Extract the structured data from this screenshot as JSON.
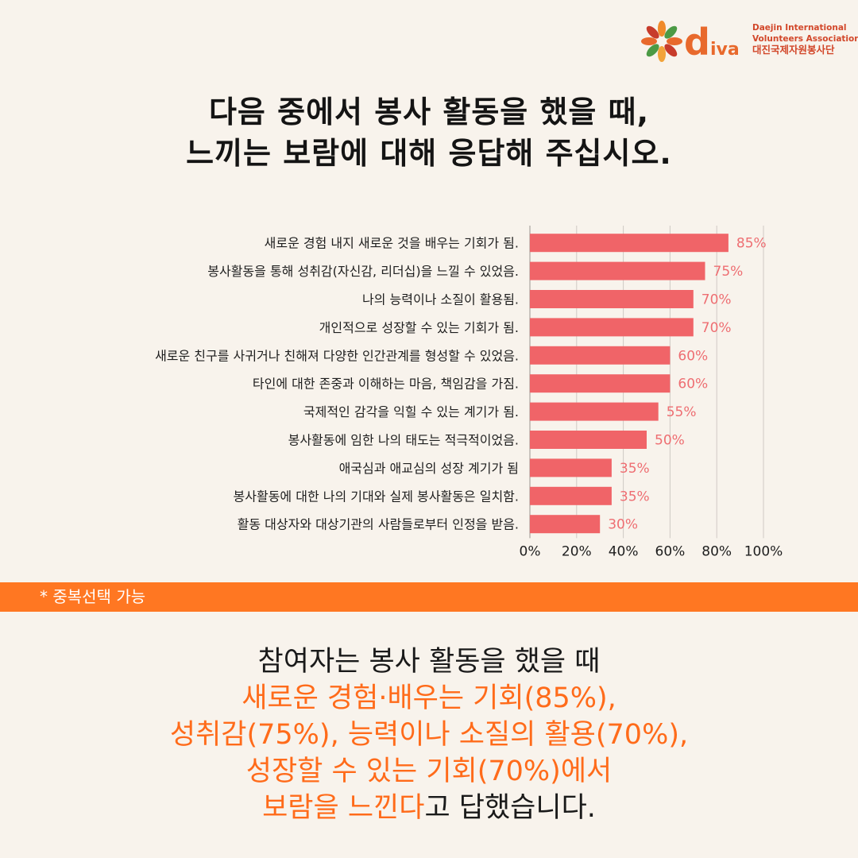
{
  "logo": {
    "brand_d": "d",
    "brand_iva": "iva",
    "org_en_line1": "Daejin International",
    "org_en_line2": "Volunteers Association",
    "org_ko": "대진국제자원봉사단"
  },
  "headline": {
    "line1": "다음 중에서 봉사 활동을 했을 때,",
    "line2": "느끼는 보람에 대해 응답해 주십시오."
  },
  "chart_data": {
    "type": "bar",
    "orientation": "horizontal",
    "categories": [
      "새로운 경험 내지 새로운 것을 배우는 기회가 됨.",
      "봉사활동을 통해 성취감(자신감, 리더십)을 느낄 수 있었음.",
      "나의 능력이나 소질이 활용됨.",
      "개인적으로 성장할 수 있는 기회가 됨.",
      "새로운 친구를 사귀거나 친해져 다양한 인간관계를 형성할 수 있었음.",
      "타인에 대한 존중과 이해하는 마음, 책임감을 가짐.",
      "국제적인 감각을 익힐 수 있는 계기가 됨.",
      "봉사활동에 임한 나의 태도는 적극적이었음.",
      "애국심과 애교심의 성장 계기가 됨",
      "봉사활동에 대한 나의 기대와 실제 봉사활동은 일치함.",
      "활동 대상자와 대상기관의 사람들로부터 인정을 받음."
    ],
    "values": [
      85,
      75,
      70,
      70,
      60,
      60,
      55,
      50,
      35,
      35,
      30
    ],
    "value_labels": [
      "85%",
      "75%",
      "70%",
      "70%",
      "60%",
      "60%",
      "55%",
      "50%",
      "35%",
      "35%",
      "30%"
    ],
    "x_ticks": [
      "0%",
      "20%",
      "40%",
      "60%",
      "80%",
      "100%"
    ],
    "xlim": [
      0,
      100
    ],
    "grid": true,
    "bar_color": "#f06468",
    "label_color": "#ee6e72"
  },
  "note": {
    "text": "* 중복선택 가능",
    "band_color": "#ff7722"
  },
  "summary": {
    "line1": "참여자는 봉사 활동을 했을 때",
    "line2": "새로운 경험·배우는 기회(85%),",
    "line3": "성취감(75%), 능력이나 소질의 활용(70%),",
    "line4": "성장할 수 있는 기회(70%)에서",
    "line5_highlight": "보람을 느낀다",
    "line5_rest": "고 답했습니다.",
    "highlight_color": "#ff6b1a"
  }
}
